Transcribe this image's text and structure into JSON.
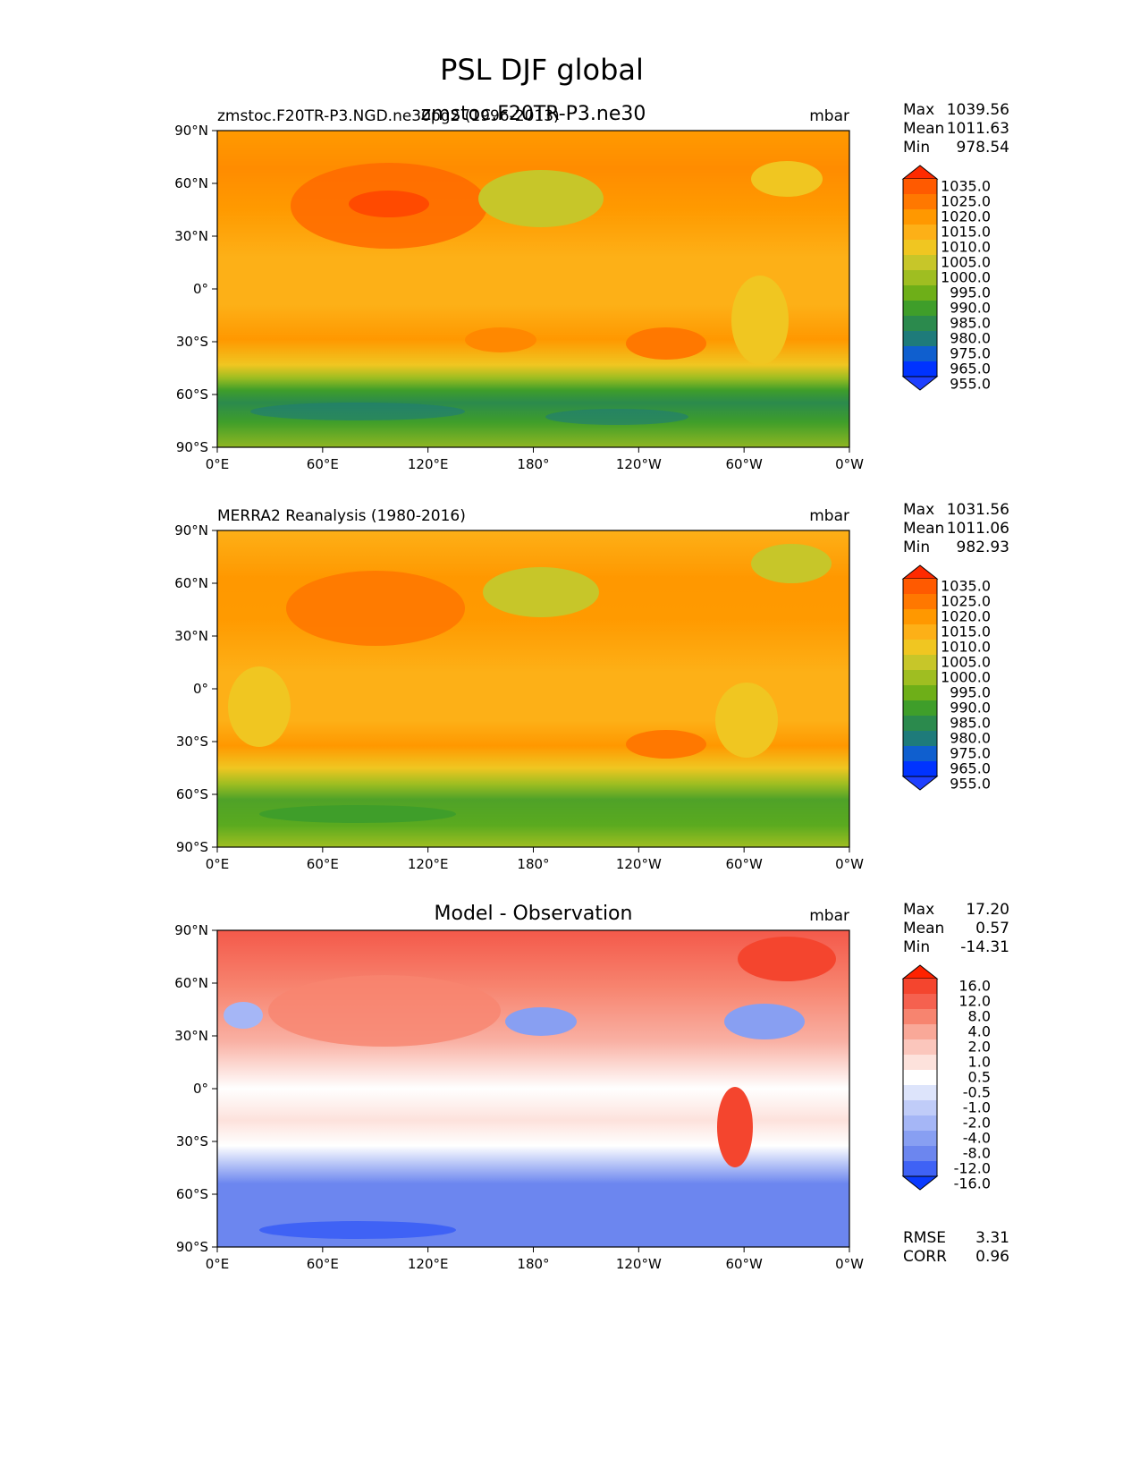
{
  "figure_title": "PSL DJF global",
  "axis_ticks": {
    "lon": [
      "0°E",
      "60°E",
      "120°E",
      "180°",
      "120°W",
      "60°W",
      "0°W"
    ],
    "lat": [
      "90°N",
      "60°N",
      "30°N",
      "0°",
      "30°S",
      "60°S",
      "90°S"
    ]
  },
  "chart_data": [
    {
      "type": "heatmap",
      "title": "zmstoc.F20TR-P3.ne30",
      "left_label": "zmstoc.F20TR-P3.NGD.ne30pg2 (1996-2013)",
      "units": "mbar",
      "stats": [
        {
          "label": "Max",
          "value": "1039.56"
        },
        {
          "label": "Mean",
          "value": "1011.63"
        },
        {
          "label": "Min",
          "value": "978.54"
        }
      ],
      "colorbar": {
        "levels": [
          "1035.0",
          "1025.0",
          "1020.0",
          "1015.0",
          "1010.0",
          "1005.0",
          "1000.0",
          "995.0",
          "990.0",
          "985.0",
          "980.0",
          "975.0",
          "965.0",
          "955.0"
        ],
        "colors": [
          "#ff2a00",
          "#ff5a00",
          "#ff7800",
          "#ff9800",
          "#fdb017",
          "#f0c621",
          "#c7c629",
          "#9fbe21",
          "#6eaf18",
          "#3f9e2a",
          "#2b8a4d",
          "#1e7b7a",
          "#0f5fcf",
          "#0033ff",
          "#1f40ff"
        ]
      },
      "xlim": [
        0,
        360
      ],
      "ylim": [
        -90,
        90
      ]
    },
    {
      "type": "heatmap",
      "title": "",
      "left_label": "MERRA2 Reanalysis (1980-2016)",
      "units": "mbar",
      "stats": [
        {
          "label": "Max",
          "value": "1031.56"
        },
        {
          "label": "Mean",
          "value": "1011.06"
        },
        {
          "label": "Min",
          "value": "982.93"
        }
      ],
      "colorbar": {
        "levels": [
          "1035.0",
          "1025.0",
          "1020.0",
          "1015.0",
          "1010.0",
          "1005.0",
          "1000.0",
          "995.0",
          "990.0",
          "985.0",
          "980.0",
          "975.0",
          "965.0",
          "955.0"
        ],
        "colors": [
          "#ff2a00",
          "#ff5a00",
          "#ff7800",
          "#ff9800",
          "#fdb017",
          "#f0c621",
          "#c7c629",
          "#9fbe21",
          "#6eaf18",
          "#3f9e2a",
          "#2b8a4d",
          "#1e7b7a",
          "#0f5fcf",
          "#0033ff",
          "#1f40ff"
        ]
      },
      "xlim": [
        0,
        360
      ],
      "ylim": [
        -90,
        90
      ]
    },
    {
      "type": "heatmap",
      "title": "Model - Observation",
      "left_label": "",
      "units": "mbar",
      "stats": [
        {
          "label": "Max",
          "value": "17.20"
        },
        {
          "label": "Mean",
          "value": "0.57"
        },
        {
          "label": "Min",
          "value": "-14.31"
        }
      ],
      "extra_stats": [
        {
          "label": "RMSE",
          "value": "3.31"
        },
        {
          "label": "CORR",
          "value": "0.96"
        }
      ],
      "colorbar": {
        "levels": [
          "16.0",
          "12.0",
          "8.0",
          "4.0",
          "2.0",
          "1.0",
          "0.5",
          "-0.5",
          "-1.0",
          "-2.0",
          "-4.0",
          "-8.0",
          "-12.0",
          "-16.0"
        ],
        "colors": [
          "#ff2200",
          "#f4452e",
          "#f5614f",
          "#f7846f",
          "#f9a898",
          "#fbc6bc",
          "#fde2dc",
          "#ffffff",
          "#dde4fb",
          "#c0ccf8",
          "#a5b6f6",
          "#889ff2",
          "#6c86ef",
          "#3f62f5",
          "#0a3bff"
        ]
      },
      "xlim": [
        0,
        360
      ],
      "ylim": [
        -90,
        90
      ]
    }
  ]
}
